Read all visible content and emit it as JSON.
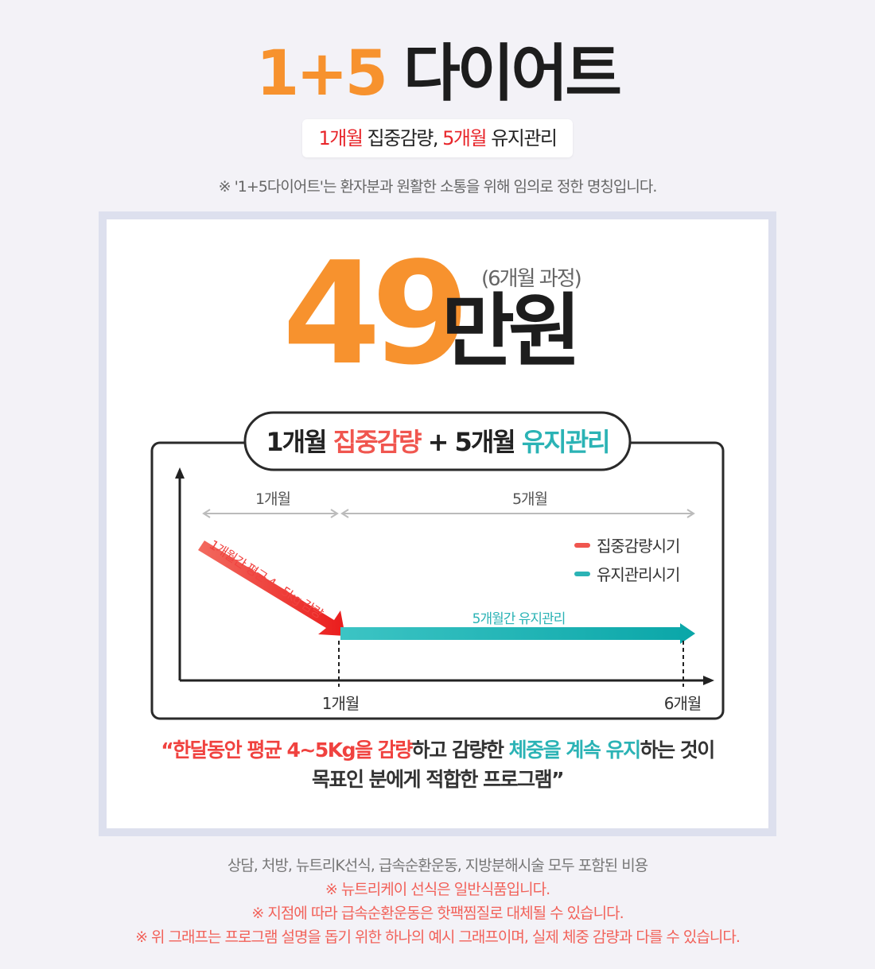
{
  "header": {
    "title_number": "1+5",
    "title_text": "다이어트",
    "subtitle": {
      "part1_red": "1개월",
      "part1": " 집중감량, ",
      "part2_red": "5개월",
      "part2": " 유지관리"
    },
    "note": "※ '1+5다이어트'는 환자분과 원활한 소통을 위해 임의로 정한 명칭입니다."
  },
  "price": {
    "number": "49",
    "unit": "만원",
    "period": "(6개월 과정)"
  },
  "diagram": {
    "pill": {
      "a": "1개월 ",
      "b": "집중감량",
      "c": " + 5개월 ",
      "d": "유지관리"
    },
    "span_1": "1개월",
    "span_5": "5개월",
    "legend": [
      {
        "label": "집중감량시기",
        "color": "#f0564f"
      },
      {
        "label": "유지관리시기",
        "color": "#2bb3b5"
      }
    ],
    "red_arrow_label": "1개월간 평균 4~5kg 감량",
    "teal_arrow_label": "5개월간 유지관리",
    "x_tick_1": "1개월",
    "x_tick_6": "6개월"
  },
  "quote": {
    "q1": "“",
    "q2": "한달동안 평균 4~5Kg을 감량",
    "q3": "하고 감량한 ",
    "q4": "체중을 계속 유지",
    "q5": "하는 것이",
    "line2": "목표인 분에게 적합한 프로그램”"
  },
  "footer": [
    "상담, 처방, 뉴트리K선식, 급속순환운동, 지방분해시술 모두 포함된 비용",
    "※ 뉴트리케이 선식은 일반식품입니다.",
    "※ 지점에 따라 급속순환운동은 핫팩찜질로 대체될 수 있습니다.",
    "※ 위 그래프는 프로그램 설명을 돕기 위한 하나의 예시 그래프이며, 실제 체중 감량과 다를 수 있습니다."
  ],
  "colors": {
    "orange": "#f7922e",
    "red": "#e8262b",
    "teal": "#2bb3b5",
    "footer_red": "#f2625a"
  }
}
